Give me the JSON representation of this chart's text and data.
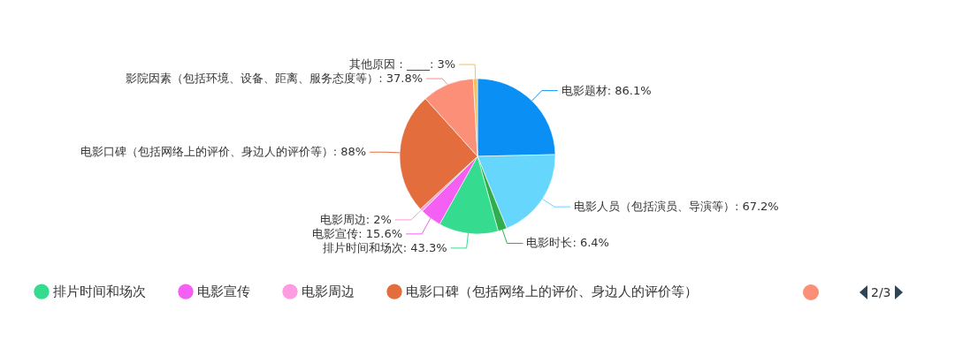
{
  "chart_data": {
    "type": "pie",
    "categories": [
      "电影题材",
      "电影人员（包括演员、导演等）",
      "电影时长",
      "排片时间和场次",
      "电影宣传",
      "电影周边",
      "电影口碑（包括网络上的评价、身边人的评价等）",
      "影院因素（包括环境、设备、距离、服务态度等）",
      "其他原因：____"
    ],
    "values": [
      86.1,
      67.2,
      6.4,
      43.3,
      15.6,
      2,
      88,
      37.8,
      3
    ],
    "value_labels": [
      ": 86.1%",
      ": 67.2%",
      ": 6.4%",
      ": 43.3%",
      ": 15.6%",
      ": 2%",
      ": 88%",
      ": 37.8%",
      ": 3%"
    ],
    "colors": [
      "#0a8ff5",
      "#66d6fd",
      "#2fae4e",
      "#35dc8f",
      "#f55ff4",
      "#fd9ce0",
      "#e36d3c",
      "#fb8f78",
      "#f7c05e"
    ],
    "legend": "bottom",
    "annotations": [
      "2/3"
    ]
  }
}
